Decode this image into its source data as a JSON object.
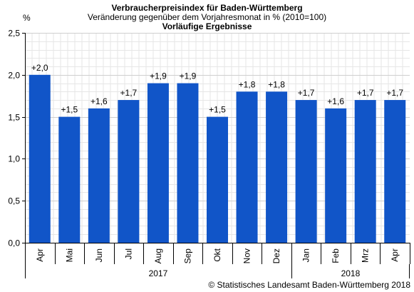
{
  "header": {
    "title": "Verbraucherpreisindex für Baden-Württemberg",
    "subtitle": "Veränderung gegenüber dem Vorjahresmonat in % (2010=100)",
    "note": "Vorläufige Ergebnisse"
  },
  "footer": {
    "credit": "© Statistisches Landesamt Baden-Württemberg 2018"
  },
  "colors": {
    "bar": "#1155c8",
    "grid": "#e6e6e6",
    "axis": "#000000"
  },
  "chart_data": {
    "type": "bar",
    "title": "Verbraucherpreisindex für Baden-Württemberg",
    "subtitle": "Veränderung gegenüber dem Vorjahresmonat in % (2010=100)",
    "ylabel": "%",
    "ylim": [
      0,
      2.5
    ],
    "yticks": [
      0.0,
      0.5,
      1.0,
      1.5,
      2.0,
      2.5
    ],
    "ytick_labels": [
      "0,0",
      "0,5",
      "1,0",
      "1,5",
      "2,0",
      "2,5"
    ],
    "grid": true,
    "categories": [
      "Apr",
      "Mai",
      "Jun",
      "Jul",
      "Aug",
      "Sep",
      "Okt",
      "Nov",
      "Dez",
      "Jan",
      "Feb",
      "Mrz",
      "Apr"
    ],
    "values": [
      2.0,
      1.5,
      1.6,
      1.7,
      1.9,
      1.9,
      1.5,
      1.8,
      1.8,
      1.7,
      1.6,
      1.7,
      1.7
    ],
    "data_labels": [
      "+2,0",
      "+1,5",
      "+1,6",
      "+1,7",
      "+1,9",
      "+1,9",
      "+1,5",
      "+1,8",
      "+1,8",
      "+1,7",
      "+1,6",
      "+1,7",
      "+1,7"
    ],
    "groups": [
      {
        "label": "2017",
        "start": 0,
        "count": 9
      },
      {
        "label": "2018",
        "start": 9,
        "count": 4
      }
    ]
  }
}
